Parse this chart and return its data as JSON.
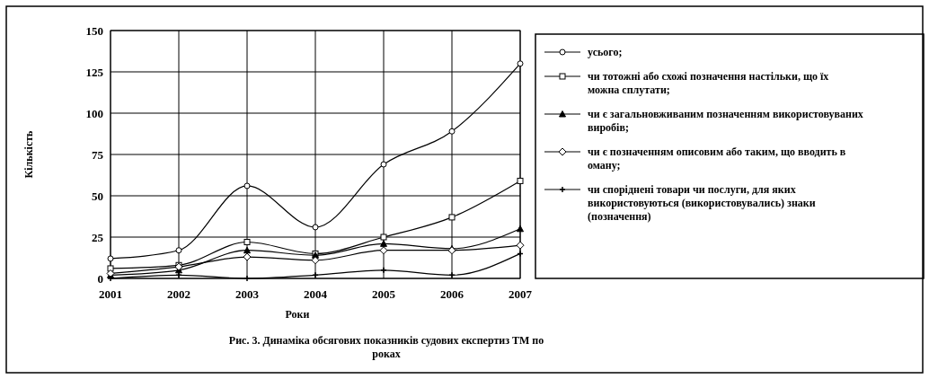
{
  "chart_data": {
    "type": "line",
    "xlabel": "Роки",
    "ylabel": "Кількість",
    "categories": [
      "2001",
      "2002",
      "2003",
      "2004",
      "2005",
      "2006",
      "2007"
    ],
    "series": [
      {
        "name": "усього;",
        "color": "#000000",
        "marker": "circle",
        "values": [
          12,
          17,
          56,
          31,
          69,
          89,
          130
        ]
      },
      {
        "name": "чи тотожні або схожі позначення настільки, що їх можна сплутати;",
        "color": "#000000",
        "marker": "square",
        "values": [
          6,
          8,
          22,
          15,
          25,
          37,
          59
        ]
      },
      {
        "name": "чи є загальновживаним позначенням використовуваних виробів;",
        "color": "#000000",
        "marker": "triangle",
        "values": [
          2,
          5,
          17,
          14,
          21,
          18,
          30
        ]
      },
      {
        "name": "чи є позначенням описовим або таким, що вводить в оману;",
        "color": "#000000",
        "marker": "diamond",
        "values": [
          3,
          7,
          13,
          11,
          17,
          17,
          20
        ]
      },
      {
        "name": "чи споріднені товари чи послуги, для яких використовуються (використовувались) знаки (позначення)",
        "color": "#000000",
        "marker": "cross",
        "values": [
          0,
          2,
          0,
          2,
          5,
          2,
          15
        ]
      }
    ],
    "ylim": [
      0,
      150
    ],
    "yticks": [
      0,
      25,
      50,
      75,
      100,
      125,
      150
    ],
    "grid": true,
    "legend": "right",
    "annotations": [
      "Рис. 3. Динаміка обсягових показників судових експертиз ТМ по роках"
    ]
  }
}
